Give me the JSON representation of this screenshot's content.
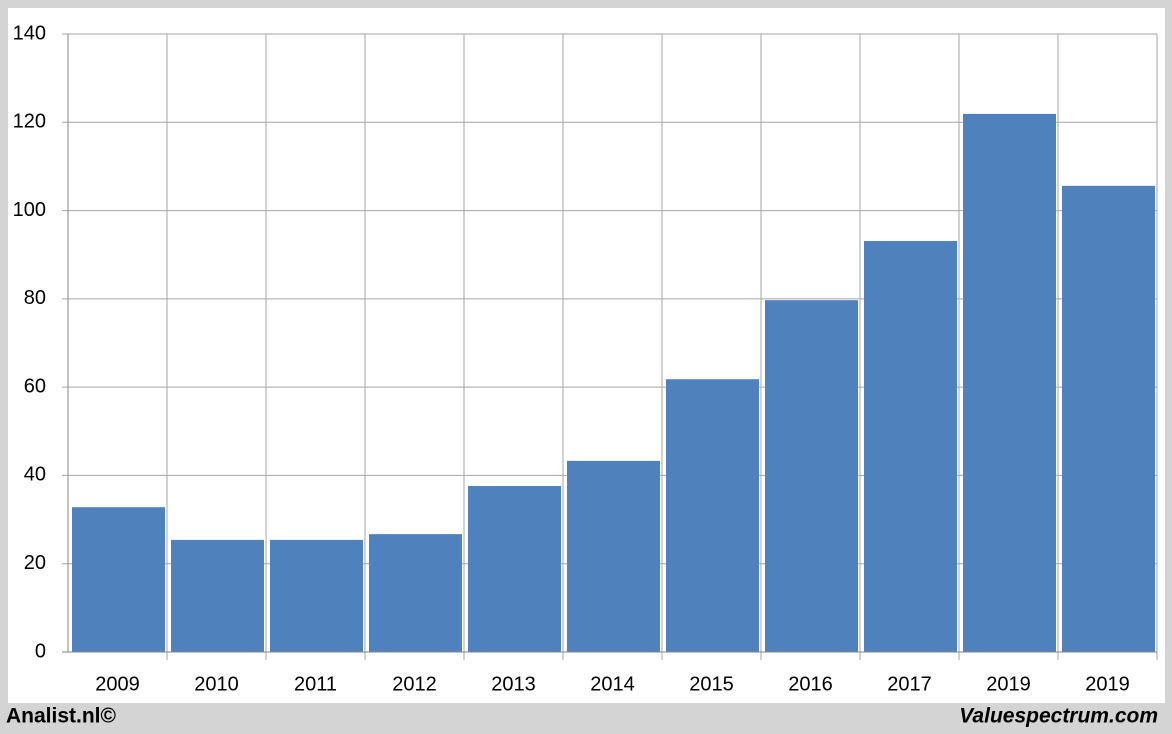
{
  "chart_data": {
    "type": "bar",
    "categories": [
      "2009",
      "2010",
      "2011",
      "2012",
      "2013",
      "2014",
      "2015",
      "2016",
      "2017",
      "2019",
      "2019"
    ],
    "values": [
      32.8,
      25.4,
      25.4,
      26.7,
      37.6,
      43.3,
      61.8,
      79.7,
      93.1,
      121.9,
      105.6
    ],
    "color": "#4f81bd",
    "ylim": [
      0,
      140
    ],
    "yticks": [
      0,
      20,
      40,
      60,
      80,
      100,
      120,
      140
    ],
    "grid": true,
    "footer_left": "Analist.nl©",
    "footer_right": "Valuespectrum.com"
  }
}
